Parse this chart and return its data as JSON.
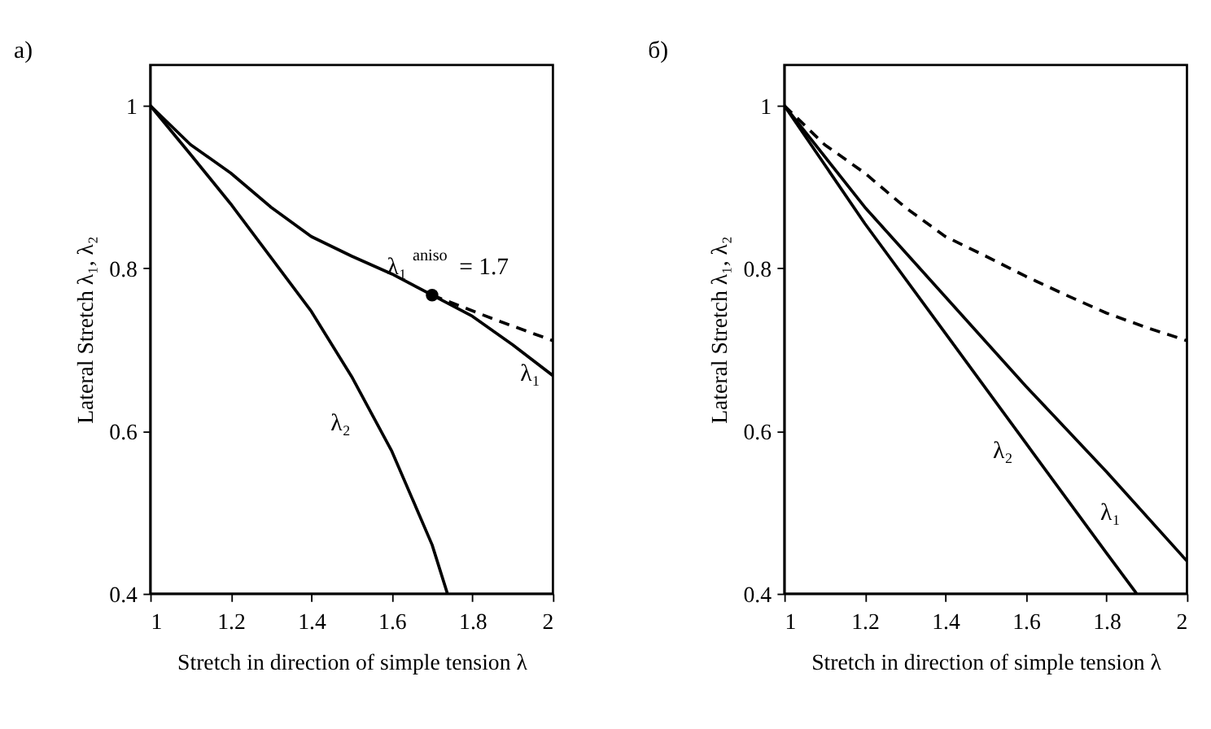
{
  "chart_data": [
    {
      "type": "line",
      "title": "a)",
      "xlabel": "Stretch in direction of simple tension λ",
      "ylabel": "Lateral Stretch  λ₁, λ₂",
      "xlim": [
        1,
        2
      ],
      "ylim": [
        0.4,
        1.05
      ],
      "xticks": [
        1,
        1.2,
        1.4,
        1.6,
        1.8,
        2
      ],
      "yticks": [
        0.4,
        0.6,
        0.8,
        1
      ],
      "grid": false,
      "marker": "none",
      "series": [
        {
          "name": "λ₁",
          "color": "#000000",
          "line_style": "solid",
          "x": [
            1,
            1.1,
            1.2,
            1.3,
            1.4,
            1.5,
            1.6,
            1.7,
            1.8,
            1.9,
            2
          ],
          "values": [
            1,
            0.952,
            0.917,
            0.875,
            0.839,
            0.815,
            0.793,
            0.767,
            0.741,
            0.706,
            0.668
          ]
        },
        {
          "color": "#000000",
          "line_style": "dashed",
          "x": [
            1.7,
            1.85,
            2
          ],
          "values": [
            0.767,
            0.738,
            0.711
          ]
        },
        {
          "name": "λ₂",
          "color": "#000000",
          "line_style": "solid",
          "x": [
            1,
            1.1,
            1.2,
            1.3,
            1.4,
            1.5,
            1.6,
            1.7,
            1.738
          ],
          "values": [
            1,
            0.94,
            0.879,
            0.813,
            0.747,
            0.667,
            0.575,
            0.46,
            0.4
          ]
        },
        {
          "type": "scatter",
          "marker": "circle",
          "color": "#000000",
          "x": [
            1.7
          ],
          "values": [
            0.767
          ]
        }
      ],
      "annotations": [
        {
          "text": "λ₁$^{aniso}$ = 1.7",
          "x": 1.7,
          "y": 0.767
        }
      ]
    },
    {
      "type": "line",
      "title": "б)",
      "xlabel": "Stretch in direction of simple tension λ",
      "ylabel": "Lateral Stretch  λ₁, λ₂",
      "xlim": [
        1,
        2
      ],
      "ylim": [
        0.4,
        1.05
      ],
      "xticks": [
        1,
        1.2,
        1.4,
        1.6,
        1.8,
        2
      ],
      "yticks": [
        0.4,
        0.6,
        0.8,
        1
      ],
      "grid": false,
      "marker": "none",
      "series": [
        {
          "color": "#000000",
          "line_style": "dashed",
          "x": [
            1,
            1.1,
            1.2,
            1.3,
            1.4,
            1.5,
            1.6,
            1.7,
            1.8,
            1.9,
            2
          ],
          "values": [
            1,
            0.952,
            0.917,
            0.875,
            0.839,
            0.815,
            0.79,
            0.767,
            0.745,
            0.727,
            0.711
          ]
        },
        {
          "name": "λ₁",
          "color": "#000000",
          "line_style": "solid",
          "x": [
            1,
            1.2,
            1.4,
            1.6,
            1.8,
            2
          ],
          "values": [
            1,
            0.875,
            0.765,
            0.655,
            0.55,
            0.44
          ]
        },
        {
          "name": "λ₂",
          "color": "#000000",
          "line_style": "solid",
          "x": [
            1,
            1.2,
            1.4,
            1.6,
            1.8,
            1.875
          ],
          "values": [
            1,
            0.855,
            0.72,
            0.585,
            0.45,
            0.4
          ]
        }
      ]
    }
  ]
}
